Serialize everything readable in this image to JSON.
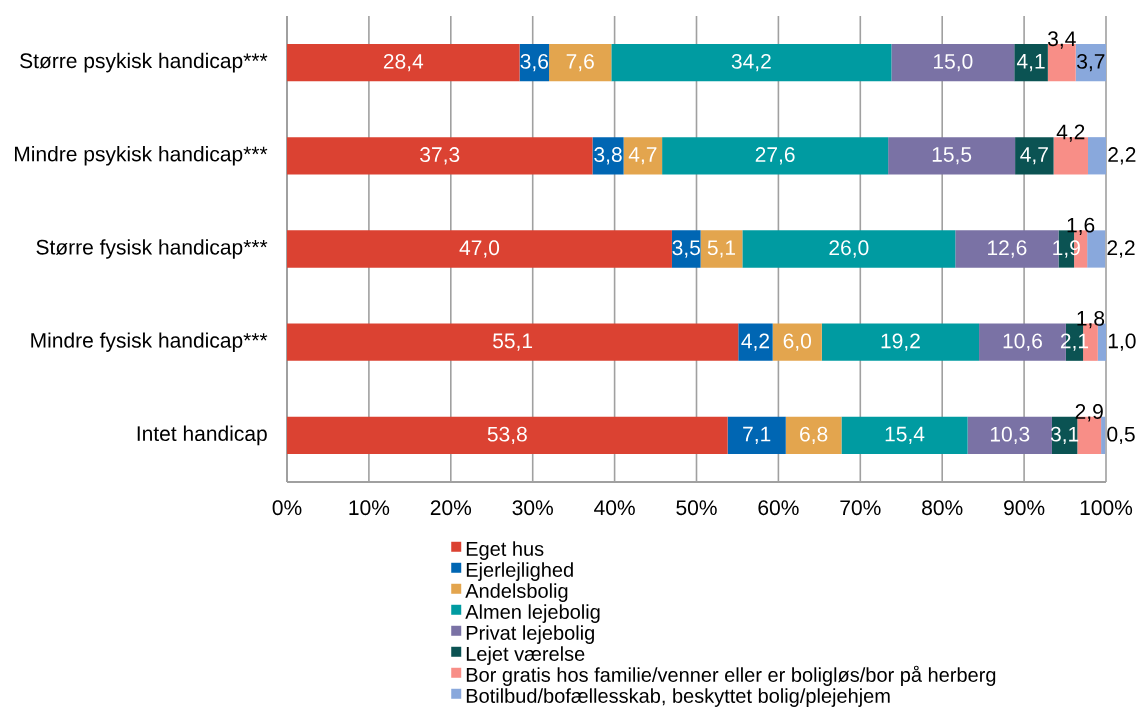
{
  "chart_data": {
    "type": "bar",
    "orientation": "horizontal",
    "stacked": true,
    "categories": [
      "Større psykisk handicap***",
      "Mindre psykisk handicap***",
      "Større fysisk handicap***",
      "Mindre fysisk handicap***",
      "Intet handicap"
    ],
    "xlim": [
      0,
      100
    ],
    "xticks": [
      {
        "value": 0,
        "label": "0%"
      },
      {
        "value": 10,
        "label": "10%"
      },
      {
        "value": 20,
        "label": "20%"
      },
      {
        "value": 30,
        "label": "30%"
      },
      {
        "value": 40,
        "label": "40%"
      },
      {
        "value": 50,
        "label": "50%"
      },
      {
        "value": 60,
        "label": "60%"
      },
      {
        "value": 70,
        "label": "70%"
      },
      {
        "value": 80,
        "label": "80%"
      },
      {
        "value": 90,
        "label": "90%"
      },
      {
        "value": 100,
        "label": "100%"
      }
    ],
    "grid": "x",
    "legend": "bottom",
    "series": [
      {
        "name": "Eget hus",
        "color": "#db4232",
        "values": [
          28.4,
          37.3,
          47.0,
          55.1,
          53.8
        ],
        "value_labels": [
          "28,4",
          "37,3",
          "47,0",
          "55,1",
          "53,8"
        ]
      },
      {
        "name": "Ejerlejlighed",
        "color": "#0066b3",
        "values": [
          3.6,
          3.8,
          3.5,
          4.2,
          7.1
        ],
        "value_labels": [
          "3,6",
          "3,8",
          "3,5",
          "4,2",
          "7,1"
        ]
      },
      {
        "name": "Andelsbolig",
        "color": "#e3a54e",
        "values": [
          7.6,
          4.7,
          5.1,
          6.0,
          6.8
        ],
        "value_labels": [
          "7,6",
          "4,7",
          "5,1",
          "6,0",
          "6,8"
        ]
      },
      {
        "name": "Almen lejebolig",
        "color": "#009ba1",
        "values": [
          34.2,
          27.6,
          26.0,
          19.2,
          15.4
        ],
        "value_labels": [
          "34,2",
          "27,6",
          "26,0",
          "19,2",
          "15,4"
        ]
      },
      {
        "name": "Privat lejebolig",
        "color": "#7a72a5",
        "values": [
          15.0,
          15.5,
          12.6,
          10.6,
          10.3
        ],
        "value_labels": [
          "15,0",
          "15,5",
          "12,6",
          "10,6",
          "10,3"
        ]
      },
      {
        "name": "Lejet værelse",
        "color": "#0b5353",
        "values": [
          4.1,
          4.7,
          1.9,
          2.1,
          3.1
        ],
        "value_labels": [
          "4,1",
          "4,7",
          "1,9",
          "2,1",
          "3,1"
        ]
      },
      {
        "name": "Bor gratis hos familie/venner eller er boligløs/bor på herberg",
        "color": "#f88e87",
        "values": [
          3.4,
          4.2,
          1.6,
          1.8,
          2.9
        ],
        "value_labels": [
          "3,4",
          "4,2",
          "1,6",
          "1,8",
          "2,9"
        ]
      },
      {
        "name": "Botilbud/bofællesskab, beskyttet bolig/plejehjem",
        "color": "#89a8dc",
        "values": [
          3.7,
          2.2,
          2.2,
          1.0,
          0.5
        ],
        "value_labels": [
          "3,7",
          "2,2",
          "2,2",
          "1,0",
          "0,5"
        ]
      }
    ]
  }
}
